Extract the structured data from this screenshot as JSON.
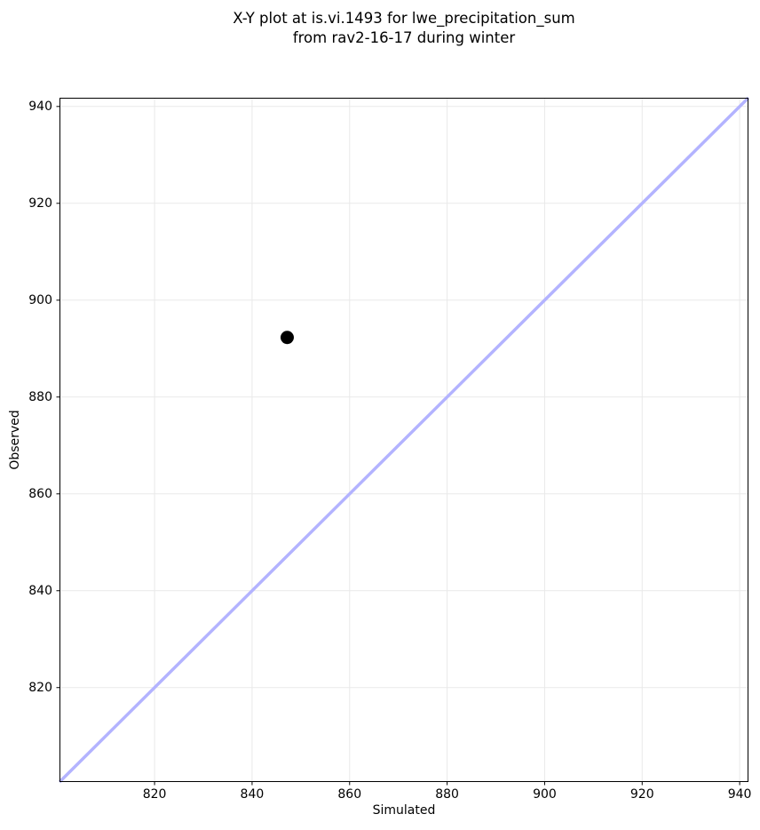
{
  "chart_data": {
    "type": "scatter",
    "title": "X-Y plot at is.vi.1493 for lwe_precipitation_sum\nfrom rav2-16-17 during winter",
    "xlabel": "Simulated",
    "ylabel": "Observed",
    "xlim": [
      800.5,
      941.8
    ],
    "ylim": [
      800.5,
      941.8
    ],
    "xticks": [
      820,
      840,
      860,
      880,
      900,
      920,
      940
    ],
    "yticks": [
      820,
      840,
      860,
      880,
      900,
      920,
      940
    ],
    "grid": true,
    "legend": false,
    "series": [
      {
        "name": "identity-line",
        "kind": "line",
        "color": "#b3b3ff",
        "points": [
          {
            "x": 800.5,
            "y": 800.5
          },
          {
            "x": 941.8,
            "y": 941.8
          }
        ]
      },
      {
        "name": "observed-vs-simulated",
        "kind": "scatter",
        "color": "#000000",
        "points": [
          {
            "x": 847.2,
            "y": 892.3
          }
        ]
      }
    ],
    "colors": {
      "background": "#ffffff",
      "grid": "#e9e9e9",
      "spine": "#000000",
      "tick": "#000000",
      "text": "#000000"
    }
  }
}
